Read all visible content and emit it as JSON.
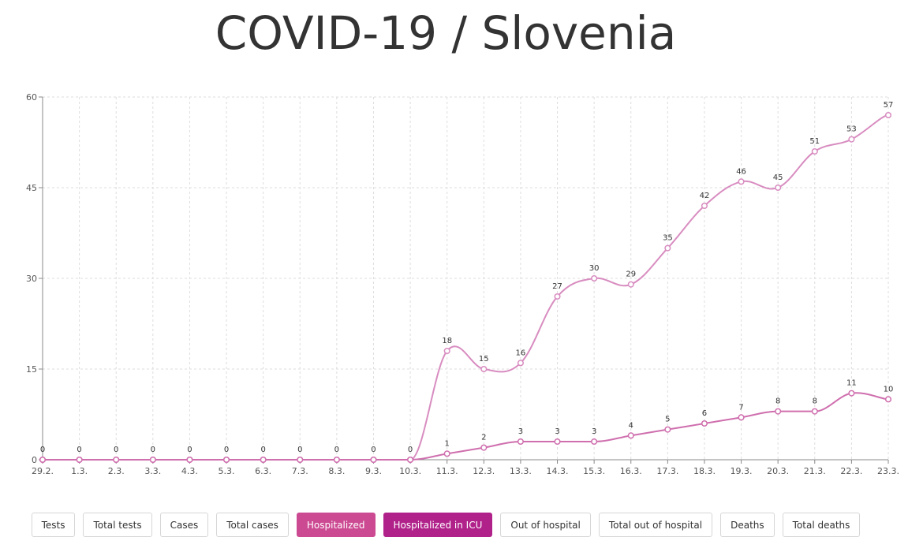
{
  "page": {
    "title": "COVID-19 / Slovenia"
  },
  "colors": {
    "hospitalized": "#d88cc0",
    "icu": "#cf6fae",
    "grid": "#dddddd",
    "axis": "#888888",
    "button_active_hospitalized": "#cc4a92",
    "button_active_icu": "#b0218a"
  },
  "buttons": [
    {
      "label": "Tests",
      "active": false
    },
    {
      "label": "Total tests",
      "active": false
    },
    {
      "label": "Cases",
      "active": false
    },
    {
      "label": "Total cases",
      "active": false
    },
    {
      "label": "Hospitalized",
      "active": true
    },
    {
      "label": "Hospitalized in ICU",
      "active": true
    },
    {
      "label": "Out of hospital",
      "active": false
    },
    {
      "label": "Total out of hospital",
      "active": false
    },
    {
      "label": "Deaths",
      "active": false
    },
    {
      "label": "Total deaths",
      "active": false
    }
  ],
  "chart_data": {
    "type": "line",
    "title": "COVID-19 / Slovenia",
    "xlabel": "",
    "ylabel": "",
    "categories": [
      "29.2.",
      "1.3.",
      "2.3.",
      "3.3.",
      "4.3.",
      "5.3.",
      "6.3.",
      "7.3.",
      "8.3.",
      "9.3.",
      "10.3.",
      "11.3.",
      "12.3.",
      "13.3.",
      "14.3.",
      "15.3.",
      "16.3.",
      "17.3.",
      "18.3.",
      "19.3.",
      "20.3.",
      "21.3.",
      "22.3.",
      "23.3."
    ],
    "series": [
      {
        "name": "Hospitalized",
        "values": [
          0,
          0,
          0,
          0,
          0,
          0,
          0,
          0,
          0,
          0,
          0,
          18,
          15,
          16,
          27,
          30,
          29,
          35,
          42,
          46,
          45,
          51,
          53,
          57
        ]
      },
      {
        "name": "Hospitalized in ICU",
        "values": [
          0,
          0,
          0,
          0,
          0,
          0,
          0,
          0,
          0,
          0,
          0,
          1,
          2,
          3,
          3,
          3,
          4,
          5,
          6,
          7,
          8,
          8,
          11,
          10
        ]
      }
    ],
    "ylim": [
      0,
      60
    ],
    "yticks": [
      0,
      15,
      30,
      45,
      60
    ],
    "grid": true,
    "data_labels": true,
    "legend": "none"
  }
}
